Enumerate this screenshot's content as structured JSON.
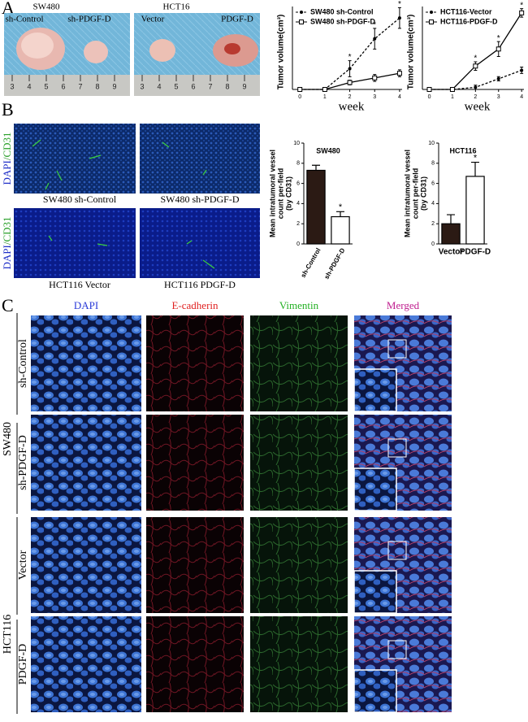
{
  "panel_labels": [
    "A",
    "B",
    "C"
  ],
  "panel_a": {
    "photos": [
      {
        "title": "SW480",
        "labels": [
          "sh-Control",
          "sh-PDGF-D"
        ]
      },
      {
        "title": "HCT16",
        "labels": [
          "Vector",
          "PDGF-D"
        ]
      }
    ],
    "ruler": [
      3,
      4,
      5,
      6,
      7,
      8,
      9
    ]
  },
  "panel_b": {
    "stain_label": [
      "DAPI",
      "/",
      "CD31"
    ],
    "captions": [
      "SW480 sh-Control",
      "SW480 sh-PDGF-D",
      "HCT116 Vector",
      "HCT116 PDGF-D"
    ]
  },
  "panel_c": {
    "columns": [
      "DAPI",
      "E-cadherin",
      "Vimentin",
      "Merged"
    ],
    "groups": [
      {
        "name": "SW480",
        "rows": [
          "sh-Control",
          "sh-PDGF-D"
        ]
      },
      {
        "name": "HCT116",
        "rows": [
          "Vector",
          "PDGF-D"
        ]
      }
    ]
  },
  "chart_data": [
    {
      "type": "line",
      "y_label": "Tumor volume(cm³)",
      "x_label": "week",
      "x": [
        0,
        1,
        2,
        3,
        4
      ],
      "xlim": [
        -0.3,
        4.1
      ],
      "xticks": [
        0,
        1,
        2,
        3,
        4
      ],
      "ylim": [
        0,
        3.6
      ],
      "series": [
        {
          "name": "SW480 sh-Control",
          "color": "#000000",
          "style": "dashed",
          "marker": "circle",
          "values": [
            0,
            0,
            0.9,
            2.2,
            3.1
          ],
          "errors": [
            0,
            0,
            0.35,
            0.45,
            0.45
          ]
        },
        {
          "name": "SW480 sh-PDGF-D",
          "color": "#000000",
          "style": "solid",
          "marker": "square",
          "values": [
            0,
            0,
            0.3,
            0.5,
            0.7
          ],
          "errors": [
            0,
            0,
            0.1,
            0.15,
            0.15
          ]
        }
      ],
      "annotations": [
        {
          "text": "*",
          "x": 2
        },
        {
          "text": "*",
          "x": 3
        },
        {
          "text": "*",
          "x": 4
        }
      ]
    },
    {
      "type": "line",
      "y_label": "Tumor volume(cm³)",
      "x_label": "week",
      "x": [
        0,
        1,
        2,
        3,
        4
      ],
      "xlim": [
        -0.3,
        4.1
      ],
      "xticks": [
        0,
        1,
        2,
        3,
        4
      ],
      "ylim": [
        0,
        3.9
      ],
      "series": [
        {
          "name": "HCT116-Vector",
          "color": "#000000",
          "style": "dashed",
          "marker": "circle",
          "values": [
            0,
            0,
            0.1,
            0.5,
            0.9
          ],
          "errors": [
            0,
            0,
            0.1,
            0.1,
            0.15
          ]
        },
        {
          "name": "HCT116-PDGF-D",
          "color": "#000000",
          "style": "solid",
          "marker": "square",
          "values": [
            0,
            0,
            1.1,
            1.9,
            3.6
          ],
          "errors": [
            0,
            0,
            0.2,
            0.35,
            0.2
          ]
        }
      ],
      "annotations": [
        {
          "text": "*",
          "x": 2
        },
        {
          "text": "*",
          "x": 3
        },
        {
          "text": "*",
          "x": 4
        }
      ]
    },
    {
      "type": "bar",
      "title": "SW480",
      "y_label": [
        "Mean intratumoral vessel",
        "count per-field",
        "(by CD31)"
      ],
      "categories": [
        "sh-Control",
        "sh-PDGF-D"
      ],
      "values": [
        7.3,
        2.7
      ],
      "errors": [
        0.5,
        0.5
      ],
      "colors": [
        "#2b1a14",
        "#ffffff"
      ],
      "xtick_rotation": -60,
      "ylim": [
        0,
        10
      ],
      "yticks": [
        0,
        2,
        4,
        6,
        8,
        10
      ],
      "annotations": [
        {
          "text": "*",
          "category": "sh-PDGF-D"
        }
      ]
    },
    {
      "type": "bar",
      "title": "HCT116",
      "y_label": [
        "Mean intratumoral vessel",
        "count per-field",
        "(by CD31)"
      ],
      "categories": [
        "Vector",
        "PDGF-D"
      ],
      "values": [
        2.0,
        6.7
      ],
      "errors": [
        0.9,
        1.4
      ],
      "colors": [
        "#2b1a14",
        "#ffffff"
      ],
      "xtick_rotation": 0,
      "ylim": [
        0,
        10
      ],
      "yticks": [
        0,
        2,
        4,
        6,
        8,
        10
      ],
      "annotations": [
        {
          "text": "*",
          "category": "PDGF-D"
        }
      ]
    }
  ]
}
